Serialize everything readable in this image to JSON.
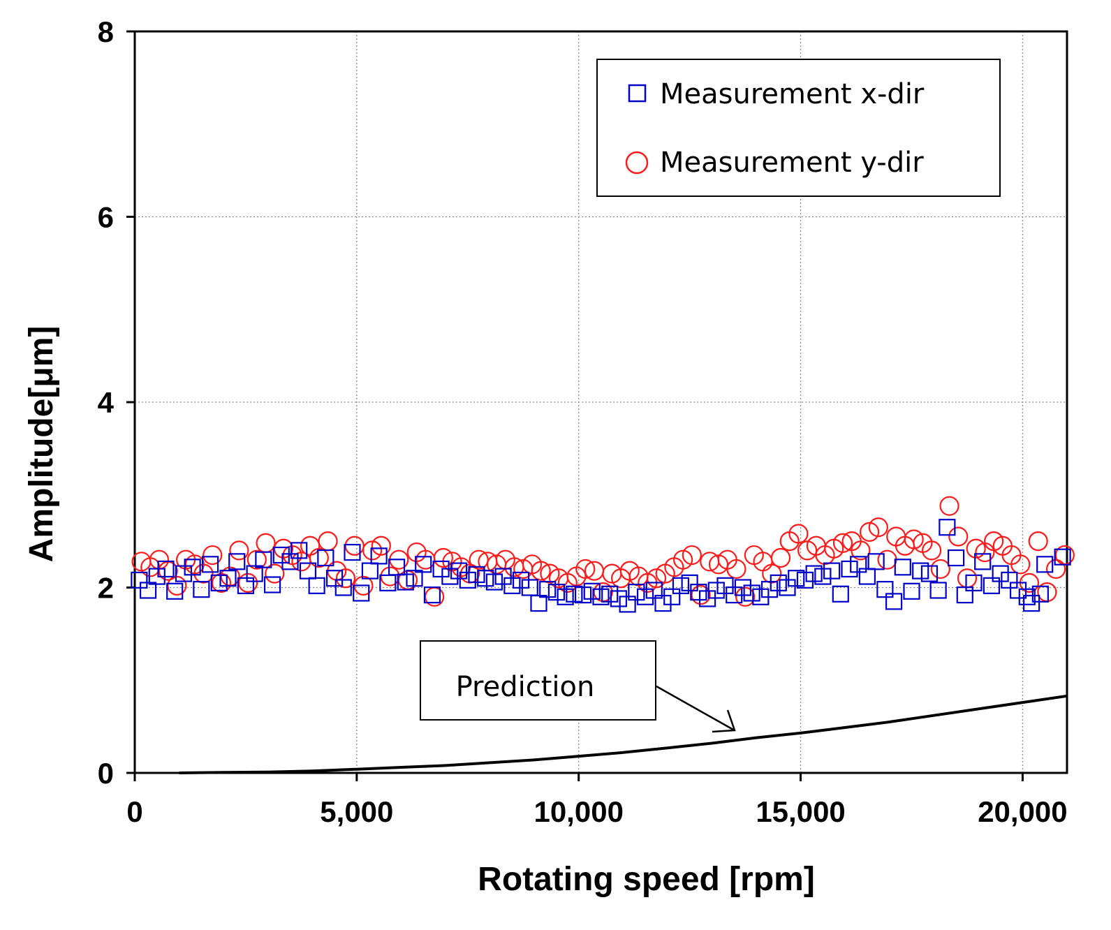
{
  "chart_data": {
    "type": "scatter",
    "xlabel": "Rotating speed [rpm]",
    "ylabel": "Amplitude[μm]",
    "xlim": [
      0,
      21000
    ],
    "ylim": [
      0,
      8
    ],
    "xticks": [
      {
        "value": 0,
        "label": "0"
      },
      {
        "value": 5000,
        "label": "5,000"
      },
      {
        "value": 10000,
        "label": "10,000"
      },
      {
        "value": 15000,
        "label": "15,000"
      },
      {
        "value": 20000,
        "label": "20,000"
      }
    ],
    "yticks": [
      {
        "value": 0,
        "label": "0"
      },
      {
        "value": 2,
        "label": "2"
      },
      {
        "value": 4,
        "label": "4"
      },
      {
        "value": 6,
        "label": "6"
      },
      {
        "value": 8,
        "label": "8"
      }
    ],
    "grid": true,
    "legend_position": "top-right",
    "annotation": {
      "text": "Prediction",
      "points_to": "Prediction"
    },
    "series": [
      {
        "name": "Measurement x-dir",
        "marker": "square",
        "color": "#0000c8",
        "points": [
          [
            100,
            2.08
          ],
          [
            300,
            1.97
          ],
          [
            500,
            2.12
          ],
          [
            700,
            2.2
          ],
          [
            900,
            1.96
          ],
          [
            1100,
            2.15
          ],
          [
            1300,
            2.22
          ],
          [
            1500,
            1.98
          ],
          [
            1700,
            2.25
          ],
          [
            1900,
            2.05
          ],
          [
            2100,
            2.1
          ],
          [
            2300,
            2.28
          ],
          [
            2500,
            2.02
          ],
          [
            2700,
            2.15
          ],
          [
            2900,
            2.3
          ],
          [
            3100,
            2.03
          ],
          [
            3300,
            2.35
          ],
          [
            3500,
            2.28
          ],
          [
            3700,
            2.4
          ],
          [
            3900,
            2.18
          ],
          [
            4100,
            2.02
          ],
          [
            4300,
            2.32
          ],
          [
            4500,
            2.1
          ],
          [
            4700,
            2.0
          ],
          [
            4900,
            2.38
          ],
          [
            5100,
            1.94
          ],
          [
            5300,
            2.18
          ],
          [
            5500,
            2.34
          ],
          [
            5700,
            2.05
          ],
          [
            5900,
            2.22
          ],
          [
            6100,
            2.06
          ],
          [
            6300,
            2.1
          ],
          [
            6500,
            2.25
          ],
          [
            6700,
            1.92
          ],
          [
            6900,
            2.2
          ],
          [
            7100,
            2.12
          ],
          [
            7300,
            2.18
          ],
          [
            7500,
            2.08
          ],
          [
            7700,
            2.14
          ],
          [
            7900,
            2.1
          ],
          [
            8100,
            2.06
          ],
          [
            8300,
            2.12
          ],
          [
            8500,
            2.02
          ],
          [
            8700,
            2.08
          ],
          [
            8900,
            2.0
          ],
          [
            9100,
            1.83
          ],
          [
            9300,
            1.98
          ],
          [
            9500,
            1.95
          ],
          [
            9700,
            1.9
          ],
          [
            9900,
            1.93
          ],
          [
            10100,
            1.92
          ],
          [
            10300,
            1.96
          ],
          [
            10500,
            1.9
          ],
          [
            10700,
            1.93
          ],
          [
            10900,
            1.88
          ],
          [
            11100,
            1.82
          ],
          [
            11300,
            1.95
          ],
          [
            11500,
            1.9
          ],
          [
            11700,
            1.97
          ],
          [
            11900,
            1.83
          ],
          [
            12100,
            1.9
          ],
          [
            12300,
            2.02
          ],
          [
            12500,
            2.05
          ],
          [
            12700,
            1.95
          ],
          [
            12900,
            1.88
          ],
          [
            13100,
            1.97
          ],
          [
            13300,
            2.02
          ],
          [
            13500,
            1.92
          ],
          [
            13700,
            2.0
          ],
          [
            13900,
            1.94
          ],
          [
            14100,
            1.9
          ],
          [
            14300,
            1.98
          ],
          [
            14500,
            2.05
          ],
          [
            14700,
            2.0
          ],
          [
            14900,
            2.1
          ],
          [
            15100,
            2.08
          ],
          [
            15300,
            2.15
          ],
          [
            15500,
            2.12
          ],
          [
            15700,
            2.18
          ],
          [
            15900,
            1.93
          ],
          [
            16100,
            2.2
          ],
          [
            16300,
            2.25
          ],
          [
            16500,
            2.12
          ],
          [
            16700,
            2.28
          ],
          [
            16900,
            1.98
          ],
          [
            17100,
            1.85
          ],
          [
            17300,
            2.22
          ],
          [
            17500,
            1.96
          ],
          [
            17700,
            2.18
          ],
          [
            17900,
            2.15
          ],
          [
            18100,
            1.97
          ],
          [
            18300,
            2.65
          ],
          [
            18500,
            2.32
          ],
          [
            18700,
            1.92
          ],
          [
            18900,
            2.05
          ],
          [
            19100,
            2.28
          ],
          [
            19300,
            2.02
          ],
          [
            19500,
            2.15
          ],
          [
            19700,
            2.08
          ],
          [
            19900,
            1.97
          ],
          [
            20100,
            1.9
          ],
          [
            20200,
            1.83
          ],
          [
            20400,
            1.93
          ],
          [
            20500,
            2.25
          ],
          [
            20900,
            2.33
          ]
        ]
      },
      {
        "name": "Measurement y-dir",
        "marker": "circle",
        "color": "#ff1a1a",
        "points": [
          [
            150,
            2.28
          ],
          [
            350,
            2.22
          ],
          [
            550,
            2.3
          ],
          [
            750,
            2.18
          ],
          [
            950,
            2.02
          ],
          [
            1150,
            2.3
          ],
          [
            1350,
            2.25
          ],
          [
            1550,
            2.15
          ],
          [
            1750,
            2.35
          ],
          [
            1950,
            2.05
          ],
          [
            2150,
            2.12
          ],
          [
            2350,
            2.4
          ],
          [
            2550,
            2.05
          ],
          [
            2750,
            2.3
          ],
          [
            2950,
            2.48
          ],
          [
            3150,
            2.15
          ],
          [
            3350,
            2.42
          ],
          [
            3550,
            2.35
          ],
          [
            3750,
            2.28
          ],
          [
            3950,
            2.45
          ],
          [
            4150,
            2.32
          ],
          [
            4350,
            2.5
          ],
          [
            4550,
            2.18
          ],
          [
            4750,
            2.1
          ],
          [
            4950,
            2.45
          ],
          [
            5150,
            2.02
          ],
          [
            5350,
            2.4
          ],
          [
            5550,
            2.45
          ],
          [
            5750,
            2.12
          ],
          [
            5950,
            2.3
          ],
          [
            6150,
            2.08
          ],
          [
            6350,
            2.38
          ],
          [
            6550,
            2.3
          ],
          [
            6750,
            1.9
          ],
          [
            6950,
            2.32
          ],
          [
            7150,
            2.28
          ],
          [
            7350,
            2.22
          ],
          [
            7550,
            2.15
          ],
          [
            7750,
            2.3
          ],
          [
            7950,
            2.28
          ],
          [
            8150,
            2.25
          ],
          [
            8350,
            2.3
          ],
          [
            8550,
            2.22
          ],
          [
            8750,
            2.2
          ],
          [
            8950,
            2.25
          ],
          [
            9150,
            2.18
          ],
          [
            9350,
            2.15
          ],
          [
            9550,
            2.1
          ],
          [
            9750,
            2.05
          ],
          [
            9950,
            2.12
          ],
          [
            10150,
            2.2
          ],
          [
            10350,
            2.18
          ],
          [
            10550,
            1.95
          ],
          [
            10750,
            2.15
          ],
          [
            10950,
            2.1
          ],
          [
            11150,
            2.18
          ],
          [
            11350,
            2.12
          ],
          [
            11550,
            2.05
          ],
          [
            11750,
            2.1
          ],
          [
            11950,
            2.15
          ],
          [
            12150,
            2.22
          ],
          [
            12350,
            2.3
          ],
          [
            12550,
            2.35
          ],
          [
            12750,
            1.92
          ],
          [
            12950,
            2.28
          ],
          [
            13150,
            2.25
          ],
          [
            13350,
            2.3
          ],
          [
            13550,
            2.2
          ],
          [
            13750,
            1.9
          ],
          [
            13950,
            2.35
          ],
          [
            14150,
            2.28
          ],
          [
            14350,
            2.15
          ],
          [
            14550,
            2.32
          ],
          [
            14750,
            2.5
          ],
          [
            14950,
            2.58
          ],
          [
            15150,
            2.4
          ],
          [
            15350,
            2.45
          ],
          [
            15550,
            2.35
          ],
          [
            15750,
            2.42
          ],
          [
            15950,
            2.48
          ],
          [
            16150,
            2.5
          ],
          [
            16350,
            2.4
          ],
          [
            16550,
            2.6
          ],
          [
            16750,
            2.65
          ],
          [
            16950,
            2.3
          ],
          [
            17150,
            2.55
          ],
          [
            17350,
            2.45
          ],
          [
            17550,
            2.52
          ],
          [
            17750,
            2.48
          ],
          [
            17950,
            2.4
          ],
          [
            18150,
            2.2
          ],
          [
            18350,
            2.88
          ],
          [
            18550,
            2.55
          ],
          [
            18750,
            2.1
          ],
          [
            18950,
            2.42
          ],
          [
            19150,
            2.38
          ],
          [
            19350,
            2.5
          ],
          [
            19550,
            2.45
          ],
          [
            19750,
            2.35
          ],
          [
            19950,
            2.25
          ],
          [
            20150,
            2.05
          ],
          [
            20350,
            2.5
          ],
          [
            20550,
            1.95
          ],
          [
            20750,
            2.2
          ],
          [
            20950,
            2.35
          ]
        ]
      },
      {
        "name": "Prediction",
        "marker": "line",
        "color": "#000000",
        "points": [
          [
            1000,
            0.0
          ],
          [
            2000,
            0.005
          ],
          [
            3000,
            0.01
          ],
          [
            4000,
            0.02
          ],
          [
            5000,
            0.04
          ],
          [
            6000,
            0.06
          ],
          [
            7000,
            0.08
          ],
          [
            8000,
            0.11
          ],
          [
            9000,
            0.14
          ],
          [
            10000,
            0.18
          ],
          [
            11000,
            0.22
          ],
          [
            12000,
            0.27
          ],
          [
            13000,
            0.32
          ],
          [
            14000,
            0.38
          ],
          [
            15000,
            0.43
          ],
          [
            16000,
            0.49
          ],
          [
            17000,
            0.55
          ],
          [
            18000,
            0.62
          ],
          [
            19000,
            0.69
          ],
          [
            20000,
            0.76
          ],
          [
            21000,
            0.83
          ]
        ]
      }
    ]
  }
}
